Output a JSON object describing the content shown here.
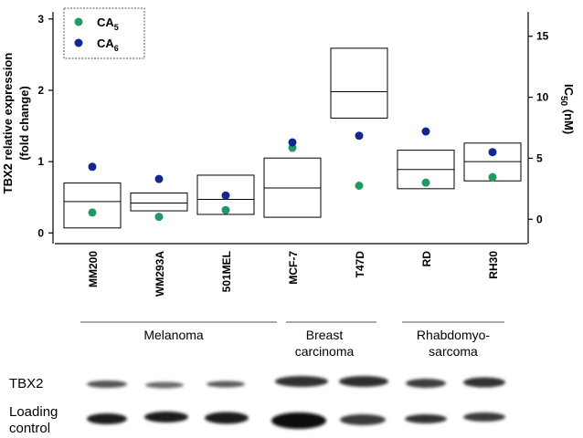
{
  "chart_data": {
    "type": "box-and-scatter",
    "left_axis": {
      "title_line1": "TBX2 relative expression",
      "title_line2": "(fold change)",
      "ylim": [
        -0.15,
        3.1
      ],
      "ticks": [
        "0",
        "1",
        "2",
        "3"
      ]
    },
    "right_axis": {
      "title_prefix": "IC",
      "title_sub": "50",
      "title_suffix": " (nM)",
      "ylim": [
        -2,
        17
      ],
      "ticks": [
        "0",
        "5",
        "10",
        "15"
      ]
    },
    "categories": [
      "MM200",
      "WM293A",
      "501MEL",
      "MCF-7",
      "T47D",
      "RD",
      "RH30"
    ],
    "tbx2_boxes": [
      {
        "category": "MM200",
        "low": 0.07,
        "mid": 0.44,
        "high": 0.7
      },
      {
        "category": "WM293A",
        "low": 0.31,
        "mid": 0.42,
        "high": 0.56
      },
      {
        "category": "501MEL",
        "low": 0.26,
        "mid": 0.47,
        "high": 0.81
      },
      {
        "category": "MCF-7",
        "low": 0.22,
        "mid": 0.63,
        "high": 1.05
      },
      {
        "category": "T47D",
        "low": 1.61,
        "mid": 1.98,
        "high": 2.59
      },
      {
        "category": "RD",
        "low": 0.62,
        "mid": 0.89,
        "high": 1.16
      },
      {
        "category": "RH30",
        "low": 0.73,
        "mid": 1.0,
        "high": 1.26
      }
    ],
    "series": [
      {
        "name_base": "CA",
        "name_sub": "5",
        "color": "#1e9a62",
        "axis": "right",
        "values": [
          0.55,
          0.2,
          0.75,
          5.85,
          2.75,
          3.0,
          3.45
        ]
      },
      {
        "name_base": "CA",
        "name_sub": "6",
        "color": "#14278c",
        "axis": "right",
        "values": [
          4.3,
          3.3,
          1.95,
          6.3,
          6.85,
          7.2,
          5.5
        ]
      }
    ],
    "legend_position": "top-left"
  },
  "groups": [
    {
      "lines": [
        "Melanoma"
      ]
    },
    {
      "lines": [
        "Breast",
        "carcinoma"
      ]
    },
    {
      "lines": [
        "Rhabdomyo-",
        "sarcoma"
      ]
    }
  ],
  "blot": {
    "rows": [
      {
        "lines": [
          "TBX2"
        ]
      },
      {
        "lines": [
          "Loading",
          "control"
        ]
      }
    ]
  }
}
